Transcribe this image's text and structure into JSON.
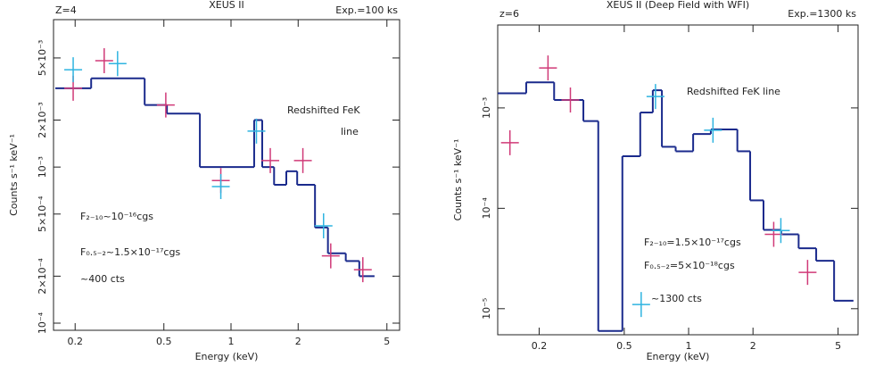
{
  "chart_data": [
    {
      "type": "step",
      "title": "XEUS II",
      "x_label": "Energy (keV)",
      "y_label": "Counts s⁻¹ keV⁻¹",
      "annotations": [
        "Z=4",
        "Exp.=100 ks",
        "Redshifted FeK",
        "line",
        "F₂₋₁₀~10⁻¹⁶cgs",
        "F₀.₅₋₂~1.5×10⁻¹⁷cgs",
        "~400 cts"
      ],
      "xscale": "log",
      "yscale": "log",
      "xlim": [
        0.16,
        5.7
      ],
      "ylim": [
        9e-05,
        0.0088
      ],
      "xticks": [
        0.2,
        0.5,
        1,
        2,
        5
      ],
      "yticks": [
        {
          "value": 0.0001,
          "label": "10⁻⁴"
        },
        {
          "value": 0.0002,
          "label": "2×10⁻⁴"
        },
        {
          "value": 0.0005,
          "label": "5×10⁻⁴"
        },
        {
          "value": 0.001,
          "label": "10⁻³"
        },
        {
          "value": 0.002,
          "label": "2×10⁻³"
        },
        {
          "value": 0.005,
          "label": "5×10⁻³"
        }
      ],
      "model": {
        "color": "#1a2a8c",
        "edges": [
          0.163,
          0.236,
          0.41,
          0.516,
          0.725,
          1.27,
          1.38,
          1.56,
          1.77,
          1.98,
          2.38,
          2.72,
          3.27,
          3.76,
          4.4
        ],
        "values": [
          0.0032,
          0.0037,
          0.0025,
          0.0022,
          0.001,
          0.002,
          0.001,
          0.00077,
          0.00094,
          0.00077,
          0.00041,
          0.00028,
          0.00025,
          0.0002
        ]
      },
      "points": [
        {
          "color": "#d03a78",
          "x": [
            0.196,
            0.27,
            0.51,
            0.9,
            1.5,
            2.1,
            2.8,
            3.9
          ],
          "values": [
            0.0032,
            0.0048,
            0.0025,
            0.00082,
            0.0011,
            0.0011,
            0.00027,
            0.00022
          ]
        },
        {
          "color": "#2fb4e0",
          "x": [
            0.196,
            0.31,
            0.9,
            1.3,
            2.6
          ],
          "values": [
            0.0042,
            0.0046,
            0.00075,
            0.0017,
            0.00042
          ]
        }
      ]
    },
    {
      "type": "step",
      "title": "XEUS II (Deep Field with WFI)",
      "x_label": "Energy (keV)",
      "y_label": "Counts s⁻¹ keV⁻¹",
      "annotations": [
        "z=6",
        "Exp.=1300 ks",
        "Redshifted FeK line",
        "F₂₋₁₀=1.5×10⁻¹⁷cgs",
        "F₀.₅₋₂=5×10⁻¹⁸cgs",
        "~1300 cts"
      ],
      "xscale": "log",
      "yscale": "log",
      "xlim": [
        0.128,
        6.2
      ],
      "ylim": [
        5.5e-06,
        0.0067
      ],
      "xticks": [
        0.2,
        0.5,
        1,
        2,
        5
      ],
      "yticks": [
        {
          "value": 1e-05,
          "label": "10⁻⁵"
        },
        {
          "value": 0.0001,
          "label": "10⁻⁴"
        },
        {
          "value": 0.001,
          "label": "10⁻³"
        }
      ],
      "model": {
        "color": "#1a2a8c",
        "edges": [
          0.128,
          0.174,
          0.235,
          0.322,
          0.378,
          0.49,
          0.594,
          0.68,
          0.75,
          0.87,
          1.05,
          1.27,
          1.69,
          1.94,
          2.24,
          2.71,
          3.27,
          3.95,
          4.79,
          5.9
        ],
        "values": [
          0.0014,
          0.0018,
          0.0012,
          0.00074,
          6e-06,
          0.00033,
          0.0009,
          0.0015,
          0.00041,
          0.00037,
          0.00055,
          0.00061,
          0.00037,
          0.00012,
          6.1e-05,
          5.5e-05,
          4e-05,
          3e-05,
          1.2e-05
        ]
      },
      "points": [
        {
          "color": "#d03a78",
          "x": [
            0.146,
            0.22,
            0.28,
            2.5,
            3.6
          ],
          "values": [
            0.00045,
            0.0025,
            0.0012,
            5.5e-05,
            2.3e-05
          ]
        },
        {
          "color": "#2fb4e0",
          "x": [
            0.7,
            1.3,
            2.7,
            0.6
          ],
          "values": [
            0.0013,
            0.0006,
            6e-05,
            1.1e-05
          ]
        }
      ]
    }
  ]
}
